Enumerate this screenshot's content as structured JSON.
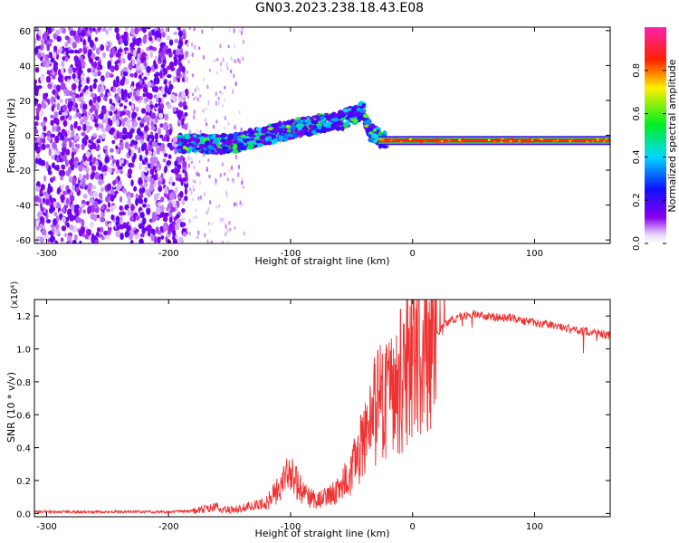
{
  "title": "GN03.2023.238.18.43.E08",
  "chart_data": [
    {
      "type": "heatmap",
      "xlabel": "Height of straight line (km)",
      "ylabel": "Frequency (Hz)",
      "xlim": [
        -310,
        162
      ],
      "ylim": [
        -62,
        62
      ],
      "xticks": [
        -300,
        -200,
        -100,
        0,
        100
      ],
      "yticks": [
        -60,
        -40,
        -20,
        0,
        20,
        40,
        60
      ],
      "xtick_labels": [
        "-300",
        "-200",
        "-100",
        "0",
        "100"
      ],
      "ytick_labels": [
        "-60",
        "-40",
        "-20",
        "0",
        "20",
        "40",
        "60"
      ],
      "colorbar": {
        "label": "Normalized spectral amplitude",
        "ticks": [
          0.0,
          0.2,
          0.4,
          0.6,
          0.8
        ],
        "tick_labels": [
          "0.0",
          "0.2",
          "0.4",
          "0.6",
          "0.8"
        ],
        "range": [
          0,
          1
        ],
        "colormap": "rainbow (white-purple-blue-cyan-green-yellow-red-magenta)"
      },
      "features": [
        {
          "name": "noise",
          "x_range": [
            -310,
            -185
          ],
          "freq_range": [
            -62,
            62
          ],
          "amplitude": 0.15
        },
        {
          "name": "chirp",
          "points": [
            [
              -190,
              -5
            ],
            [
              -150,
              -5
            ],
            [
              -120,
              0
            ],
            [
              -90,
              5
            ],
            [
              -60,
              8
            ],
            [
              -40,
              14
            ],
            [
              -35,
              2
            ],
            [
              -25,
              -2
            ]
          ],
          "amplitude": 0.35
        },
        {
          "name": "carrier",
          "x_range": [
            -25,
            162
          ],
          "freq": -3,
          "amplitude": 0.9
        }
      ]
    },
    {
      "type": "line",
      "xlabel": "Height of straight line (km)",
      "ylabel": "SNR (10 * v/v)",
      "y_multiplier": "(x10⁴)",
      "xlim": [
        -310,
        162
      ],
      "ylim": [
        -0.02,
        1.3
      ],
      "xticks": [
        -300,
        -200,
        -100,
        0,
        100
      ],
      "yticks": [
        0.0,
        0.2,
        0.4,
        0.6,
        0.8,
        1.0,
        1.2
      ],
      "xtick_labels": [
        "-300",
        "-200",
        "-100",
        "0",
        "100"
      ],
      "ytick_labels": [
        "0.0",
        "0.2",
        "0.4",
        "0.6",
        "0.8",
        "1.0",
        "1.2"
      ],
      "color": "#ee3333",
      "x": [
        -310,
        -250,
        -200,
        -180,
        -160,
        -150,
        -140,
        -120,
        -110,
        -100,
        -90,
        -80,
        -70,
        -60,
        -50,
        -40,
        -30,
        -20,
        -10,
        0,
        10,
        20,
        30,
        40,
        50,
        60,
        70,
        80,
        90,
        100,
        110,
        120,
        130,
        140,
        150,
        162
      ],
      "y": [
        0.01,
        0.01,
        0.01,
        0.015,
        0.04,
        0.02,
        0.03,
        0.06,
        0.15,
        0.25,
        0.12,
        0.08,
        0.1,
        0.15,
        0.25,
        0.45,
        0.65,
        0.7,
        0.8,
        0.95,
        1.0,
        1.1,
        1.17,
        1.2,
        1.21,
        1.2,
        1.19,
        1.19,
        1.17,
        1.16,
        1.15,
        1.14,
        1.12,
        1.11,
        1.1,
        1.08
      ]
    }
  ]
}
